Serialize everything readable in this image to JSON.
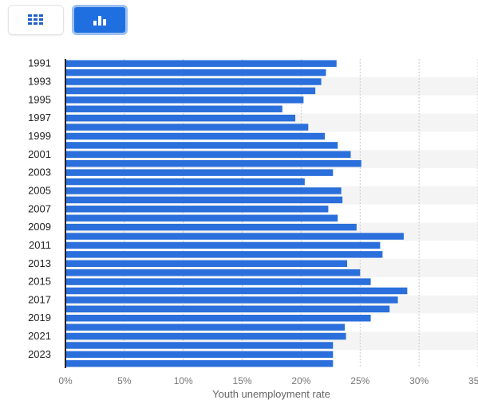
{
  "toolbar": {
    "table_icon": "table-grid-icon",
    "chart_icon": "bar-chart-icon",
    "active": "chart",
    "accent": "#1f6fe0"
  },
  "chart_data": {
    "type": "bar",
    "orientation": "horizontal",
    "categories": [
      "1991",
      "1992",
      "1993",
      "1994",
      "1995",
      "1996",
      "1997",
      "1998",
      "1999",
      "2000",
      "2001",
      "2002",
      "2003",
      "2004",
      "2005",
      "2006",
      "2007",
      "2008",
      "2009",
      "2010",
      "2011",
      "2012",
      "2013",
      "2014",
      "2015",
      "2016",
      "2017",
      "2018",
      "2019",
      "2020",
      "2021",
      "2022",
      "2023",
      "2024"
    ],
    "tick_labels": [
      "1991",
      "1993",
      "1995",
      "1997",
      "1999",
      "2001",
      "2003",
      "2005",
      "2007",
      "2009",
      "2011",
      "2013",
      "2015",
      "2017",
      "2019",
      "2021",
      "2023"
    ],
    "values": [
      23.0,
      22.1,
      21.7,
      21.2,
      20.2,
      18.4,
      19.5,
      20.6,
      22.0,
      23.1,
      24.2,
      25.1,
      22.7,
      20.3,
      23.4,
      23.5,
      22.3,
      23.1,
      24.7,
      28.7,
      26.7,
      26.9,
      23.9,
      25.0,
      25.9,
      29.0,
      28.2,
      27.5,
      25.9,
      23.7,
      23.8,
      22.7,
      22.7,
      22.7
    ],
    "xlabel": "Youth unemployment rate",
    "ylabel": "",
    "xlim": [
      0,
      35
    ],
    "xticks": [
      0,
      5,
      10,
      15,
      20,
      25,
      30,
      35
    ],
    "xtick_labels": [
      "0%",
      "5%",
      "10%",
      "15%",
      "20%",
      "25%",
      "30%",
      "35%"
    ],
    "grid": true,
    "bar_color": "#2a6fdb",
    "stripe_color": "#f4f4f4"
  }
}
